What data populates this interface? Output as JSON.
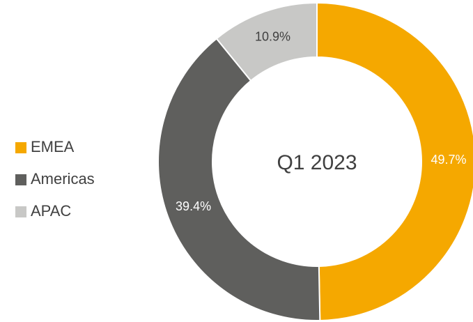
{
  "chart_data": {
    "type": "donut",
    "center_label": "Q1 2023",
    "categories": [
      "EMEA",
      "Americas",
      "APAC"
    ],
    "values": [
      49.7,
      39.4,
      10.9
    ],
    "value_labels": [
      "49.7%",
      "39.4%",
      "10.9%"
    ],
    "colors": [
      "#f5a800",
      "#5f5f5d",
      "#c8c8c6"
    ],
    "label_colors": [
      "#ffffff",
      "#ffffff",
      "#404040"
    ],
    "legend": "left"
  }
}
